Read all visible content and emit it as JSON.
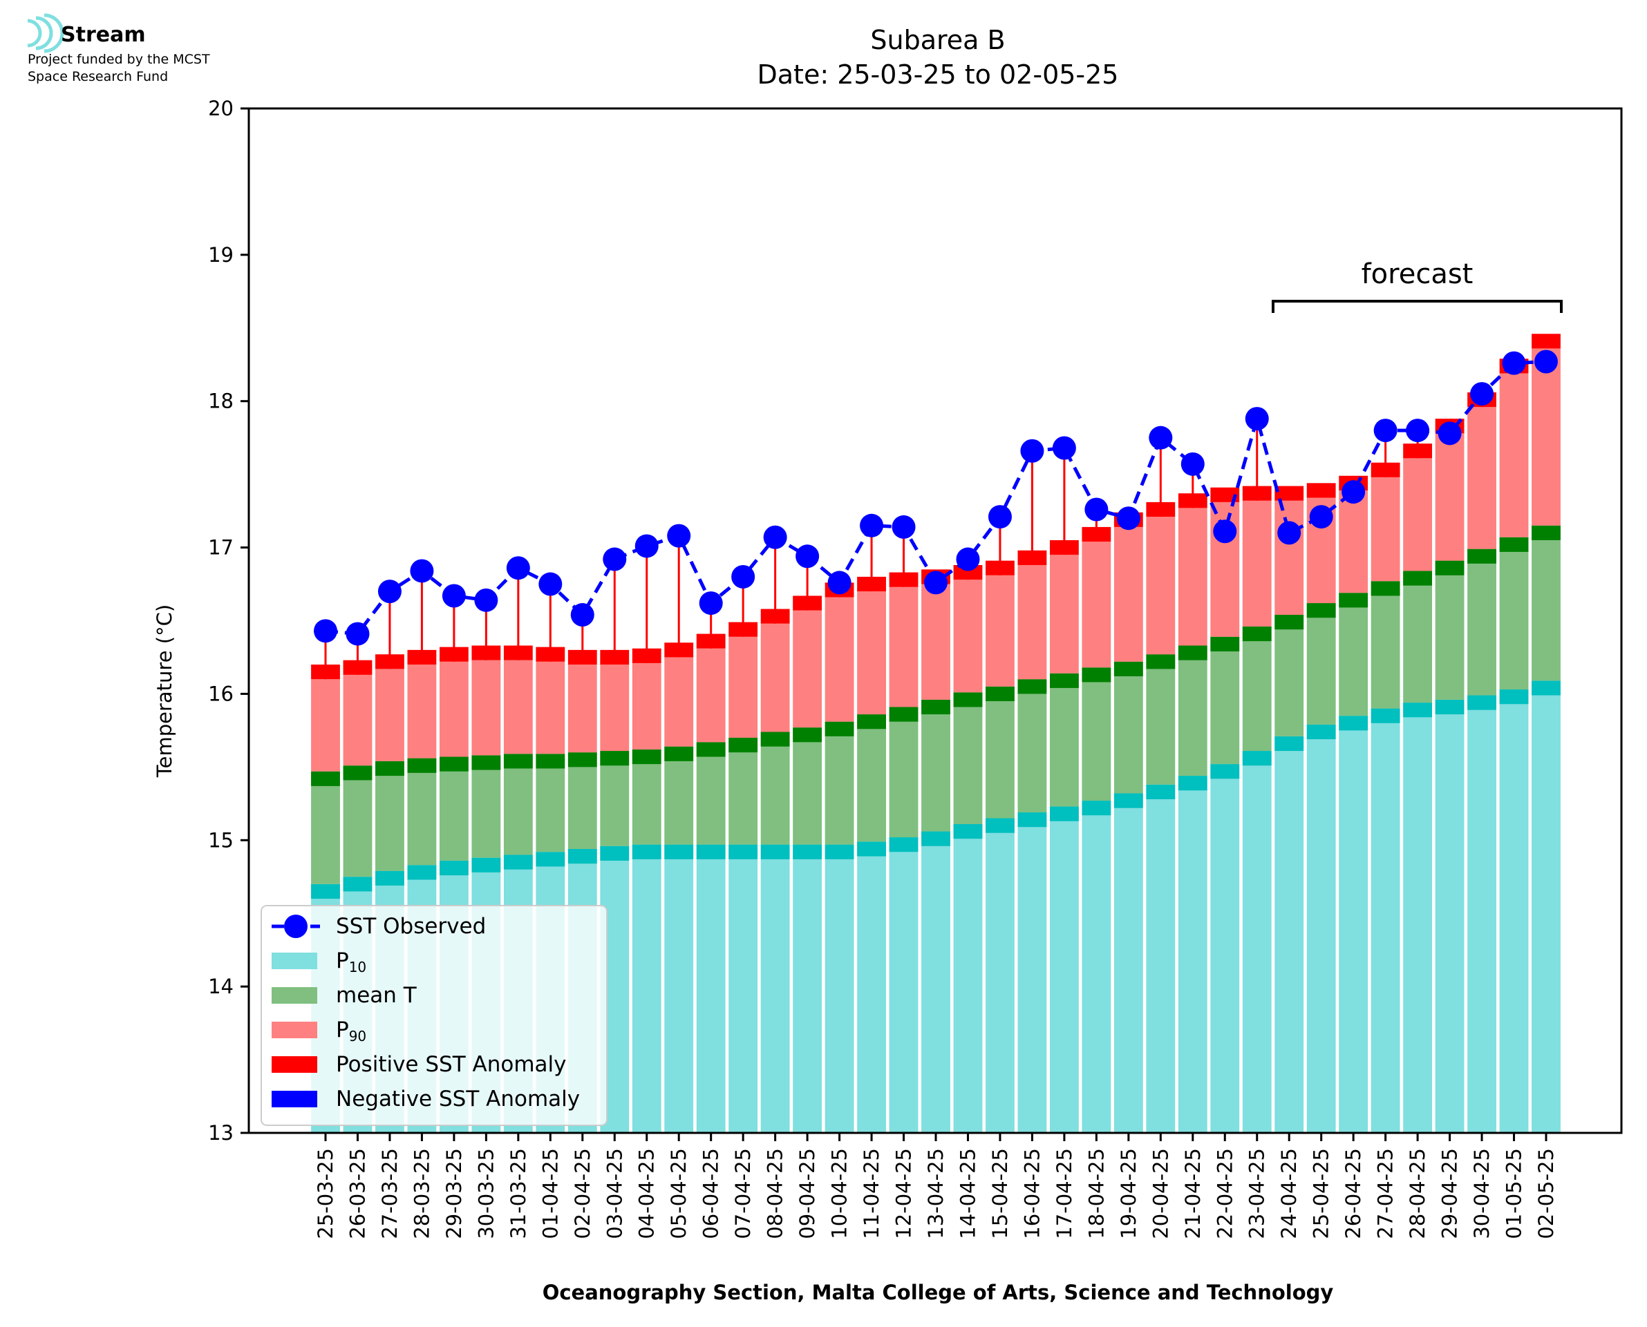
{
  "logo": {
    "name": "Stream",
    "line1": "Project funded by the MCST",
    "line2": "Space Research Fund",
    "color": "#7fdfdf"
  },
  "chart_data": {
    "type": "bar",
    "title": "Subarea B",
    "subtitle": "Date: 25-03-25 to 02-05-25",
    "xlabel": "Oceanography Section, Malta College of Arts, Science and Technology",
    "ylabel": "Temperature (°C)",
    "ylim": [
      13,
      20
    ],
    "yticks": [
      13,
      14,
      15,
      16,
      17,
      18,
      19,
      20
    ],
    "annotation": "forecast",
    "forecast_start": "24-04-25",
    "forecast_end": "02-05-25",
    "categories": [
      "25-03-25",
      "26-03-25",
      "27-03-25",
      "28-03-25",
      "29-03-25",
      "30-03-25",
      "31-03-25",
      "01-04-25",
      "02-04-25",
      "03-04-25",
      "04-04-25",
      "05-04-25",
      "06-04-25",
      "07-04-25",
      "08-04-25",
      "09-04-25",
      "10-04-25",
      "11-04-25",
      "12-04-25",
      "13-04-25",
      "14-04-25",
      "15-04-25",
      "16-04-25",
      "17-04-25",
      "18-04-25",
      "19-04-25",
      "20-04-25",
      "21-04-25",
      "22-04-25",
      "23-04-25",
      "24-04-25",
      "25-04-25",
      "26-04-25",
      "27-04-25",
      "28-04-25",
      "29-04-25",
      "30-04-25",
      "01-05-25",
      "02-05-25"
    ],
    "series": [
      {
        "name": "SST Observed",
        "type": "line",
        "color": "#0000ff",
        "values": [
          16.43,
          16.41,
          16.7,
          16.84,
          16.67,
          16.64,
          16.86,
          16.75,
          16.54,
          16.92,
          17.01,
          17.08,
          16.62,
          16.8,
          17.07,
          16.94,
          16.76,
          17.15,
          17.14,
          16.76,
          16.92,
          17.21,
          17.66,
          17.68,
          17.26,
          17.2,
          17.75,
          17.57,
          17.11,
          17.88,
          17.1,
          17.21,
          17.38,
          17.8,
          17.8,
          17.78,
          18.05,
          18.26,
          18.27
        ]
      },
      {
        "name": "P10",
        "type": "bar",
        "color": "#80dfdf",
        "edge_color": "#00bfbf",
        "values": [
          14.7,
          14.75,
          14.79,
          14.83,
          14.86,
          14.88,
          14.9,
          14.92,
          14.94,
          14.96,
          14.97,
          14.97,
          14.97,
          14.97,
          14.97,
          14.97,
          14.97,
          14.99,
          15.02,
          15.06,
          15.11,
          15.15,
          15.19,
          15.23,
          15.27,
          15.32,
          15.38,
          15.44,
          15.52,
          15.61,
          15.71,
          15.79,
          15.85,
          15.9,
          15.94,
          15.96,
          15.99,
          16.03,
          16.09
        ]
      },
      {
        "name": "mean T",
        "type": "bar",
        "color": "#80bf80",
        "edge_color": "#008000",
        "values": [
          15.47,
          15.51,
          15.54,
          15.56,
          15.57,
          15.58,
          15.59,
          15.59,
          15.6,
          15.61,
          15.62,
          15.64,
          15.67,
          15.7,
          15.74,
          15.77,
          15.81,
          15.86,
          15.91,
          15.96,
          16.01,
          16.05,
          16.1,
          16.14,
          16.18,
          16.22,
          16.27,
          16.33,
          16.39,
          16.46,
          16.54,
          16.62,
          16.69,
          16.77,
          16.84,
          16.91,
          16.99,
          17.07,
          17.15
        ]
      },
      {
        "name": "P90",
        "type": "bar",
        "color": "#ff8080",
        "values": [
          16.1,
          16.13,
          16.17,
          16.2,
          16.22,
          16.23,
          16.23,
          16.22,
          16.2,
          16.2,
          16.21,
          16.25,
          16.31,
          16.39,
          16.48,
          16.57,
          16.66,
          16.7,
          16.73,
          16.75,
          16.78,
          16.81,
          16.88,
          16.95,
          17.04,
          17.14,
          17.21,
          17.27,
          17.31,
          17.32,
          17.32,
          17.34,
          17.39,
          17.48,
          17.61,
          17.78,
          17.96,
          18.19,
          18.36
        ]
      },
      {
        "name": "Positive SST Anomaly",
        "type": "bar",
        "color": "#ff0000"
      },
      {
        "name": "Negative SST Anomaly",
        "type": "bar",
        "color": "#0000ff"
      }
    ],
    "legend": {
      "placement": "lower-left",
      "entries": [
        "SST Observed",
        "P",
        "mean T",
        "P",
        "Positive SST Anomaly",
        "Negative SST Anomaly"
      ],
      "subscripts": [
        "",
        "10",
        "",
        "90",
        "",
        ""
      ]
    },
    "grid": false
  }
}
